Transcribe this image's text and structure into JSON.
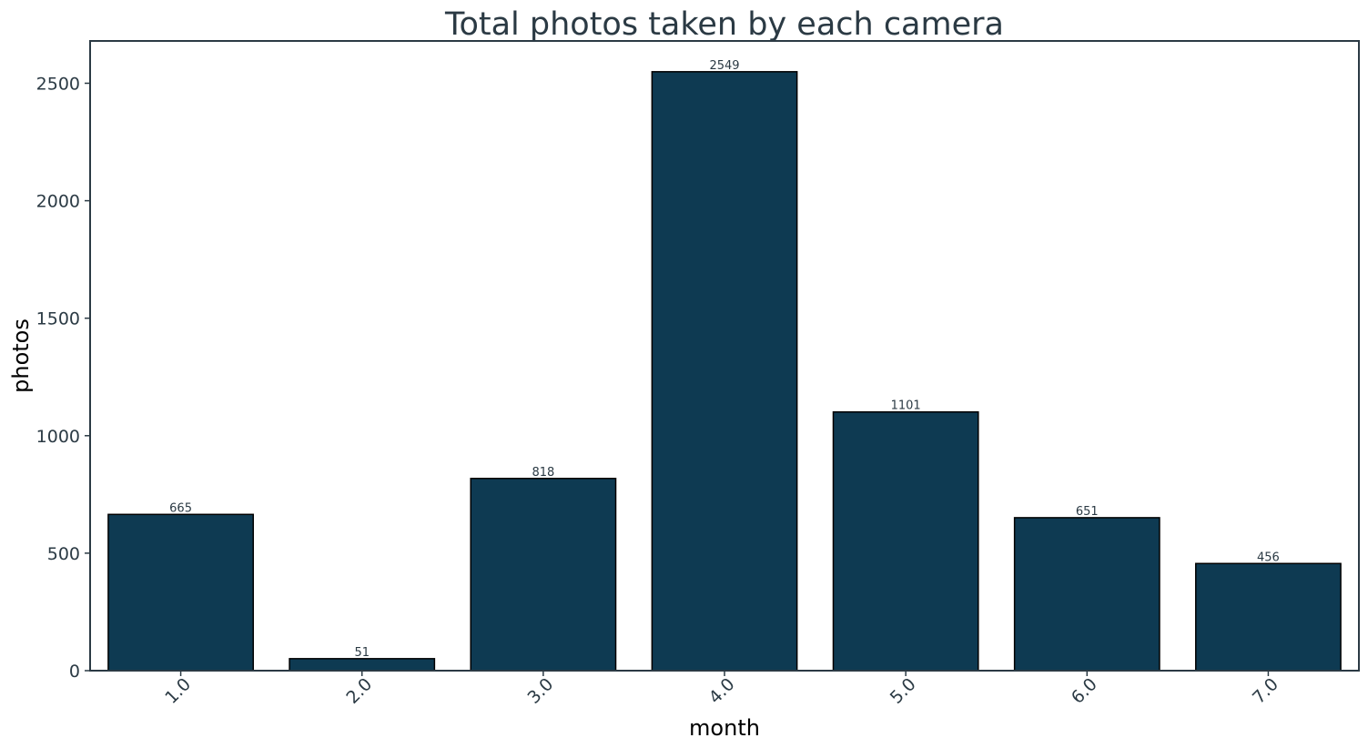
{
  "chart_data": {
    "type": "bar",
    "title": "Total photos taken by each camera",
    "xlabel": "month",
    "ylabel": "photos",
    "categories": [
      "1.0",
      "2.0",
      "3.0",
      "4.0",
      "5.0",
      "6.0",
      "7.0"
    ],
    "values": [
      665,
      51,
      818,
      2549,
      1101,
      651,
      456
    ],
    "data_labels": [
      "665",
      "51",
      "818",
      "2549",
      "1101",
      "651",
      "456"
    ],
    "ylim": [
      0,
      2680
    ],
    "yticks": [
      0,
      500,
      1000,
      1500,
      2000,
      2500
    ],
    "ytick_labels": [
      "0",
      "500",
      "1000",
      "1500",
      "2000",
      "2500"
    ],
    "grid": false,
    "legend": "none",
    "bar_color": "#0e3a52",
    "bar_edge_color": "#000000",
    "axes_color": "#2b3a44"
  }
}
